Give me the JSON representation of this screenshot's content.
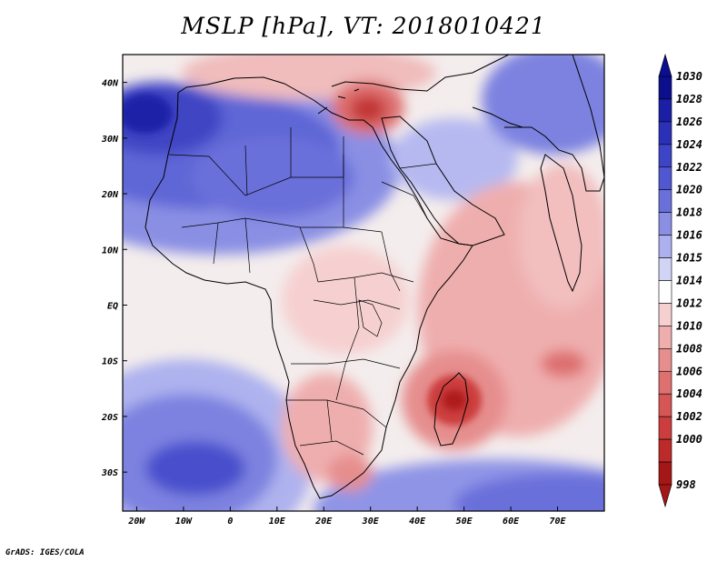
{
  "title": "MSLP [hPa], VT: 2018010421",
  "credit": "GrADS: IGES/COLA",
  "map": {
    "lon_range": [
      -23,
      80
    ],
    "lat_range": [
      -37,
      45
    ],
    "lon_ticks": [
      {
        "value": -20,
        "label": "20W"
      },
      {
        "value": -10,
        "label": "10W"
      },
      {
        "value": 0,
        "label": "0"
      },
      {
        "value": 10,
        "label": "10E"
      },
      {
        "value": 20,
        "label": "20E"
      },
      {
        "value": 30,
        "label": "30E"
      },
      {
        "value": 40,
        "label": "40E"
      },
      {
        "value": 50,
        "label": "50E"
      },
      {
        "value": 60,
        "label": "60E"
      },
      {
        "value": 70,
        "label": "70E"
      }
    ],
    "lat_ticks": [
      {
        "value": 40,
        "label": "40N"
      },
      {
        "value": 30,
        "label": "30N"
      },
      {
        "value": 20,
        "label": "20N"
      },
      {
        "value": 10,
        "label": "10N"
      },
      {
        "value": 0,
        "label": "EQ"
      },
      {
        "value": -10,
        "label": "10S"
      },
      {
        "value": -20,
        "label": "20S"
      },
      {
        "value": -30,
        "label": "30S"
      }
    ]
  },
  "colorbar": {
    "levels": [
      {
        "label": "1030",
        "color": "#0b0f8e"
      },
      {
        "label": "1028",
        "color": "#1a1fa6"
      },
      {
        "label": "1026",
        "color": "#2b30b8"
      },
      {
        "label": "1024",
        "color": "#3d44c6"
      },
      {
        "label": "1022",
        "color": "#5057d0"
      },
      {
        "label": "1020",
        "color": "#6a70da"
      },
      {
        "label": "1018",
        "color": "#8a8fe4"
      },
      {
        "label": "1016",
        "color": "#acb0ee"
      },
      {
        "label": "1015",
        "color": "#d2d4f6"
      },
      {
        "label": "1014",
        "color": "#ffffff"
      },
      {
        "label": "1012",
        "color": "#f6d0d0"
      },
      {
        "label": "1010",
        "color": "#efaeae"
      },
      {
        "label": "1008",
        "color": "#e68e8e"
      },
      {
        "label": "1006",
        "color": "#de7070"
      },
      {
        "label": "1004",
        "color": "#d65555"
      },
      {
        "label": "1002",
        "color": "#cc3d3d"
      },
      {
        "label": "1000",
        "color": "#bd2a2a"
      },
      {
        "label": "998",
        "color": "#a51717"
      }
    ]
  }
}
